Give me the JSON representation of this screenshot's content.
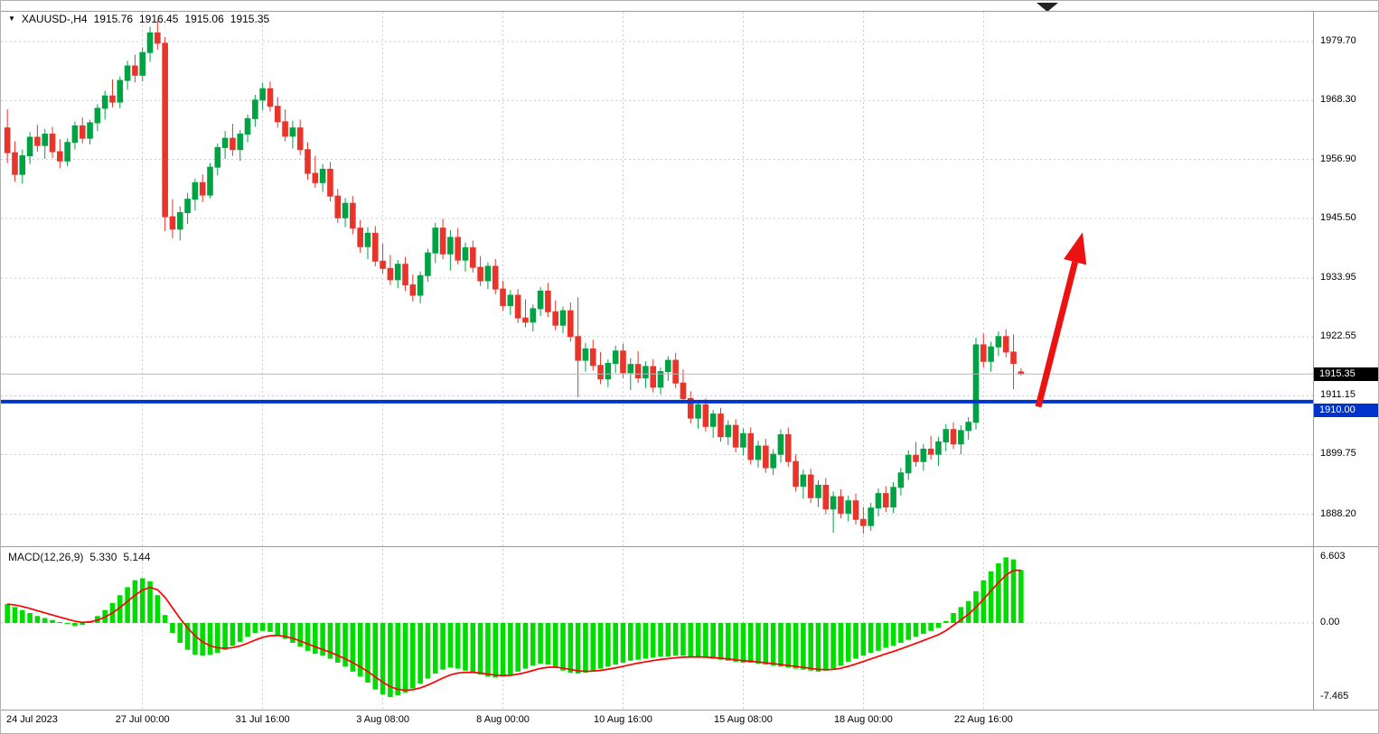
{
  "header": {
    "symbol_period": "XAUUSD-,H4",
    "open": "1915.76",
    "high": "1916.45",
    "low": "1915.06",
    "close": "1915.35"
  },
  "macd_header": {
    "label": "MACD(12,26,9)",
    "main_value": "5.330",
    "signal_value": "5.144"
  },
  "price_axis": {
    "labels": [
      "1979.70",
      "1968.30",
      "1956.90",
      "1945.50",
      "1933.95",
      "1922.55",
      "1911.15",
      "1899.75",
      "1888.20"
    ],
    "bid_label": "1915.35",
    "hline_label": "1910.00",
    "macd_labels": [
      "6.603",
      "0.00",
      "-7.465"
    ]
  },
  "time_axis": {
    "labels": [
      {
        "text": "24 Jul 2023",
        "bar": 0,
        "align": "left"
      },
      {
        "text": "27 Jul 00:00",
        "bar": 18
      },
      {
        "text": "31 Jul 16:00",
        "bar": 34
      },
      {
        "text": "3 Aug 08:00",
        "bar": 50
      },
      {
        "text": "8 Aug 00:00",
        "bar": 66
      },
      {
        "text": "10 Aug 16:00",
        "bar": 82
      },
      {
        "text": "15 Aug 08:00",
        "bar": 98
      },
      {
        "text": "18 Aug 00:00",
        "bar": 114
      },
      {
        "text": "22 Aug 16:00",
        "bar": 130
      }
    ]
  },
  "colors": {
    "candle_up": "#00a344",
    "candle_down": "#e8352b",
    "macd_bar": "#00dc00",
    "macd_signal": "#ff0000",
    "hline": "#0033cc",
    "bid_line": "#b8b8b8",
    "bid_box": "#000000",
    "grid": "#cdcdcd",
    "separator": "#9b9b9b",
    "arrow": "#ec1212",
    "shift_marker": "#222222"
  },
  "chart_data": {
    "type": "candlestick",
    "symbol": "XAUUSD",
    "timeframe": "H4",
    "price_range": [
      1882.0,
      1985.5
    ],
    "bid": 1915.35,
    "hline_level": 1910.0,
    "candles": [
      [
        1963.0,
        1966.6,
        1956.2,
        1958.2
      ],
      [
        1958.2,
        1960.4,
        1952.6,
        1954.0
      ],
      [
        1954.0,
        1958.8,
        1952.2,
        1957.6
      ],
      [
        1957.6,
        1962.2,
        1956.0,
        1961.2
      ],
      [
        1961.2,
        1963.6,
        1958.4,
        1959.6
      ],
      [
        1959.6,
        1962.8,
        1957.0,
        1961.8
      ],
      [
        1961.8,
        1963.2,
        1957.2,
        1958.4
      ],
      [
        1958.4,
        1960.8,
        1955.2,
        1956.6
      ],
      [
        1956.6,
        1961.0,
        1955.6,
        1960.2
      ],
      [
        1960.2,
        1964.2,
        1958.8,
        1963.4
      ],
      [
        1963.4,
        1965.0,
        1960.0,
        1961.0
      ],
      [
        1961.0,
        1964.6,
        1959.8,
        1964.0
      ],
      [
        1964.0,
        1967.6,
        1962.4,
        1966.8
      ],
      [
        1966.8,
        1970.2,
        1964.6,
        1969.2
      ],
      [
        1969.2,
        1972.4,
        1967.0,
        1968.0
      ],
      [
        1968.0,
        1973.0,
        1966.8,
        1972.2
      ],
      [
        1972.2,
        1976.0,
        1970.4,
        1975.0
      ],
      [
        1975.0,
        1977.2,
        1971.8,
        1973.2
      ],
      [
        1973.2,
        1978.6,
        1972.0,
        1977.6
      ],
      [
        1977.6,
        1982.6,
        1975.8,
        1981.4
      ],
      [
        1981.4,
        1983.8,
        1978.2,
        1979.4
      ],
      [
        1979.4,
        1980.6,
        1943.0,
        1945.8
      ],
      [
        1945.8,
        1949.2,
        1941.6,
        1943.4
      ],
      [
        1943.4,
        1947.8,
        1941.2,
        1946.6
      ],
      [
        1946.6,
        1950.4,
        1944.4,
        1949.2
      ],
      [
        1949.2,
        1953.2,
        1947.0,
        1952.4
      ],
      [
        1952.4,
        1954.0,
        1948.6,
        1950.0
      ],
      [
        1950.0,
        1956.2,
        1949.4,
        1955.4
      ],
      [
        1955.4,
        1960.0,
        1953.8,
        1959.2
      ],
      [
        1959.2,
        1962.4,
        1957.0,
        1961.0
      ],
      [
        1961.0,
        1963.8,
        1957.6,
        1958.8
      ],
      [
        1958.8,
        1962.6,
        1956.6,
        1961.8
      ],
      [
        1961.8,
        1965.6,
        1960.2,
        1964.8
      ],
      [
        1964.8,
        1969.4,
        1963.2,
        1968.4
      ],
      [
        1968.4,
        1971.8,
        1966.4,
        1970.6
      ],
      [
        1970.6,
        1972.0,
        1966.2,
        1967.2
      ],
      [
        1967.2,
        1969.0,
        1963.0,
        1964.2
      ],
      [
        1964.2,
        1966.6,
        1960.4,
        1961.4
      ],
      [
        1961.4,
        1964.4,
        1959.0,
        1963.0
      ],
      [
        1963.0,
        1964.6,
        1957.8,
        1958.8
      ],
      [
        1958.8,
        1960.2,
        1953.0,
        1954.2
      ],
      [
        1954.2,
        1957.6,
        1951.4,
        1952.4
      ],
      [
        1952.4,
        1956.0,
        1950.6,
        1955.0
      ],
      [
        1955.0,
        1956.4,
        1948.8,
        1949.8
      ],
      [
        1949.8,
        1951.2,
        1944.6,
        1945.6
      ],
      [
        1945.6,
        1949.4,
        1943.8,
        1948.4
      ],
      [
        1948.4,
        1949.8,
        1942.4,
        1943.6
      ],
      [
        1943.6,
        1945.2,
        1938.8,
        1940.0
      ],
      [
        1940.0,
        1943.8,
        1937.6,
        1942.6
      ],
      [
        1942.6,
        1944.0,
        1936.2,
        1937.2
      ],
      [
        1937.2,
        1940.6,
        1934.8,
        1935.8
      ],
      [
        1935.8,
        1938.4,
        1932.6,
        1933.6
      ],
      [
        1933.6,
        1937.4,
        1932.0,
        1936.6
      ],
      [
        1936.6,
        1938.0,
        1931.4,
        1932.6
      ],
      [
        1932.6,
        1934.6,
        1929.4,
        1930.6
      ],
      [
        1930.6,
        1935.2,
        1929.0,
        1934.4
      ],
      [
        1934.4,
        1939.6,
        1933.2,
        1938.8
      ],
      [
        1938.8,
        1944.6,
        1936.8,
        1943.6
      ],
      [
        1943.6,
        1945.4,
        1937.6,
        1938.6
      ],
      [
        1938.6,
        1943.2,
        1935.4,
        1941.8
      ],
      [
        1941.8,
        1943.6,
        1936.6,
        1937.4
      ],
      [
        1937.4,
        1940.8,
        1935.2,
        1939.8
      ],
      [
        1939.8,
        1941.2,
        1935.0,
        1936.0
      ],
      [
        1936.0,
        1938.2,
        1932.4,
        1933.4
      ],
      [
        1933.4,
        1937.0,
        1931.8,
        1936.2
      ],
      [
        1936.2,
        1937.6,
        1930.8,
        1931.8
      ],
      [
        1931.8,
        1933.4,
        1927.6,
        1928.6
      ],
      [
        1928.6,
        1931.6,
        1926.8,
        1930.6
      ],
      [
        1930.6,
        1931.8,
        1925.2,
        1926.2
      ],
      [
        1926.2,
        1929.8,
        1924.4,
        1925.4
      ],
      [
        1925.4,
        1928.8,
        1923.6,
        1928.0
      ],
      [
        1928.0,
        1932.2,
        1926.6,
        1931.4
      ],
      [
        1931.4,
        1933.0,
        1926.4,
        1927.4
      ],
      [
        1927.4,
        1929.6,
        1923.8,
        1924.8
      ],
      [
        1924.8,
        1928.4,
        1923.2,
        1927.6
      ],
      [
        1927.6,
        1929.2,
        1921.6,
        1922.6
      ],
      [
        1922.6,
        1930.2,
        1910.8,
        1918.0
      ],
      [
        1918.0,
        1921.4,
        1915.8,
        1920.2
      ],
      [
        1920.2,
        1922.0,
        1916.0,
        1917.0
      ],
      [
        1917.0,
        1919.6,
        1913.4,
        1914.4
      ],
      [
        1914.4,
        1918.2,
        1912.8,
        1917.4
      ],
      [
        1917.4,
        1920.8,
        1915.6,
        1919.8
      ],
      [
        1919.8,
        1921.2,
        1914.6,
        1915.6
      ],
      [
        1915.6,
        1918.4,
        1912.2,
        1917.2
      ],
      [
        1917.2,
        1919.8,
        1913.6,
        1914.6
      ],
      [
        1914.6,
        1917.8,
        1912.6,
        1916.8
      ],
      [
        1916.8,
        1918.2,
        1911.8,
        1912.8
      ],
      [
        1912.8,
        1916.6,
        1911.4,
        1915.8
      ],
      [
        1915.8,
        1918.8,
        1914.0,
        1918.0
      ],
      [
        1918.0,
        1919.4,
        1912.6,
        1913.6
      ],
      [
        1913.6,
        1916.2,
        1909.6,
        1910.6
      ],
      [
        1910.6,
        1912.0,
        1905.8,
        1906.8
      ],
      [
        1906.8,
        1910.2,
        1904.8,
        1909.4
      ],
      [
        1909.4,
        1910.6,
        1904.2,
        1905.2
      ],
      [
        1905.2,
        1908.4,
        1903.0,
        1907.6
      ],
      [
        1907.6,
        1908.8,
        1902.2,
        1903.2
      ],
      [
        1903.2,
        1906.4,
        1901.6,
        1905.4
      ],
      [
        1905.4,
        1906.6,
        1900.2,
        1901.2
      ],
      [
        1901.2,
        1904.8,
        1899.6,
        1903.8
      ],
      [
        1903.8,
        1905.0,
        1897.8,
        1898.8
      ],
      [
        1898.8,
        1902.4,
        1897.2,
        1901.4
      ],
      [
        1901.4,
        1902.8,
        1896.2,
        1897.2
      ],
      [
        1897.2,
        1900.8,
        1895.8,
        1899.8
      ],
      [
        1899.8,
        1904.6,
        1898.2,
        1903.6
      ],
      [
        1903.6,
        1905.0,
        1897.4,
        1898.4
      ],
      [
        1898.4,
        1899.8,
        1892.6,
        1893.6
      ],
      [
        1893.6,
        1896.8,
        1891.2,
        1895.8
      ],
      [
        1895.8,
        1897.0,
        1890.4,
        1891.4
      ],
      [
        1891.4,
        1894.8,
        1889.6,
        1893.8
      ],
      [
        1893.8,
        1895.2,
        1888.2,
        1889.2
      ],
      [
        1889.2,
        1892.6,
        1884.6,
        1891.6
      ],
      [
        1891.6,
        1893.0,
        1887.4,
        1888.4
      ],
      [
        1888.4,
        1891.8,
        1886.8,
        1890.8
      ],
      [
        1890.8,
        1892.2,
        1886.2,
        1887.2
      ],
      [
        1887.2,
        1889.6,
        1884.4,
        1886.0
      ],
      [
        1886.0,
        1890.4,
        1885.0,
        1889.4
      ],
      [
        1889.4,
        1893.2,
        1887.8,
        1892.2
      ],
      [
        1892.2,
        1893.6,
        1888.6,
        1889.6
      ],
      [
        1889.6,
        1894.4,
        1888.4,
        1893.4
      ],
      [
        1893.4,
        1897.2,
        1891.8,
        1896.2
      ],
      [
        1896.2,
        1900.6,
        1894.8,
        1899.6
      ],
      [
        1899.6,
        1902.2,
        1897.4,
        1898.4
      ],
      [
        1898.4,
        1901.8,
        1896.6,
        1900.8
      ],
      [
        1900.8,
        1903.4,
        1898.8,
        1899.8
      ],
      [
        1899.8,
        1903.2,
        1897.6,
        1902.2
      ],
      [
        1902.2,
        1905.6,
        1900.4,
        1904.6
      ],
      [
        1904.6,
        1906.0,
        1900.8,
        1901.8
      ],
      [
        1901.8,
        1905.4,
        1899.8,
        1904.4
      ],
      [
        1904.4,
        1907.0,
        1902.6,
        1906.0
      ],
      [
        1906.0,
        1922.4,
        1904.6,
        1921.0
      ],
      [
        1921.0,
        1923.2,
        1916.6,
        1917.8
      ],
      [
        1917.8,
        1921.6,
        1915.8,
        1920.6
      ],
      [
        1920.6,
        1923.6,
        1918.8,
        1922.6
      ],
      [
        1922.6,
        1924.0,
        1918.6,
        1919.6
      ],
      [
        1919.6,
        1923.0,
        1912.4,
        1917.4
      ],
      [
        1915.76,
        1916.45,
        1915.06,
        1915.35
      ]
    ],
    "macd": {
      "axis_max": 6.603,
      "axis_min": -7.465,
      "histogram": [
        1.9,
        1.6,
        1.3,
        1.0,
        0.7,
        0.5,
        0.3,
        0.1,
        -0.1,
        -0.3,
        -0.2,
        0.2,
        0.7,
        1.3,
        2.0,
        2.8,
        3.6,
        4.3,
        4.5,
        4.2,
        2.8,
        0.8,
        -1.0,
        -2.0,
        -2.7,
        -3.2,
        -3.3,
        -3.2,
        -3.0,
        -2.7,
        -2.3,
        -1.9,
        -1.4,
        -1.0,
        -0.8,
        -0.9,
        -1.2,
        -1.6,
        -2.0,
        -2.4,
        -2.8,
        -3.1,
        -3.3,
        -3.6,
        -4.0,
        -4.4,
        -4.9,
        -5.4,
        -6.0,
        -6.7,
        -7.2,
        -7.465,
        -7.3,
        -7.0,
        -6.6,
        -6.1,
        -5.6,
        -5.1,
        -4.7,
        -4.5,
        -4.6,
        -4.8,
        -5.0,
        -5.2,
        -5.4,
        -5.5,
        -5.4,
        -5.2,
        -4.9,
        -4.6,
        -4.3,
        -4.1,
        -4.2,
        -4.4,
        -4.8,
        -5.0,
        -5.1,
        -5.0,
        -4.8,
        -4.6,
        -4.4,
        -4.2,
        -4.0,
        -3.8,
        -3.7,
        -3.6,
        -3.5,
        -3.4,
        -3.4,
        -3.3,
        -3.3,
        -3.4,
        -3.4,
        -3.5,
        -3.6,
        -3.7,
        -3.8,
        -3.9,
        -4.0,
        -4.0,
        -4.1,
        -4.2,
        -4.3,
        -4.4,
        -4.5,
        -4.6,
        -4.7,
        -4.8,
        -4.9,
        -4.8,
        -4.6,
        -4.3,
        -3.9,
        -3.6,
        -3.3,
        -3.0,
        -2.8,
        -2.5,
        -2.3,
        -2.0,
        -1.7,
        -1.4,
        -1.1,
        -0.8,
        -0.5,
        0.2,
        1.0,
        1.6,
        2.2,
        3.2,
        4.3,
        5.2,
        6.0,
        6.603,
        6.4,
        5.33
      ]
    },
    "annotation_arrow": {
      "from": {
        "bar": 137.3,
        "price": 1909.0
      },
      "to": {
        "bar": 143.2,
        "price": 1942.8
      }
    }
  }
}
